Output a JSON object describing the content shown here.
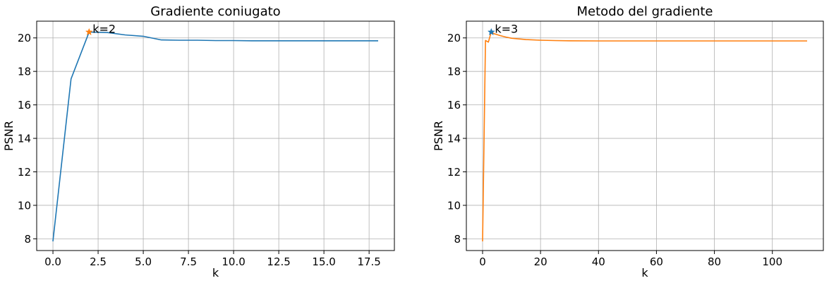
{
  "colors": {
    "series_blue": "#1f77b4",
    "series_orange": "#ff7f0e",
    "grid": "#b0b0b0",
    "axis": "#000000"
  },
  "chart_data": [
    {
      "type": "line",
      "title": "Gradiente coniugato",
      "xlabel": "k",
      "ylabel": "PSNR",
      "xlim": [
        -0.9,
        18.9
      ],
      "ylim": [
        7.3,
        21.0
      ],
      "xticks": [
        0.0,
        2.5,
        5.0,
        7.5,
        10.0,
        12.5,
        15.0,
        17.5
      ],
      "xtick_labels": [
        "0.0",
        "2.5",
        "5.0",
        "7.5",
        "10.0",
        "12.5",
        "15.0",
        "17.5"
      ],
      "yticks": [
        8,
        10,
        12,
        14,
        16,
        18,
        20
      ],
      "ytick_labels": [
        "8",
        "10",
        "12",
        "14",
        "16",
        "18",
        "20"
      ],
      "grid": true,
      "series": [
        {
          "color": "#1f77b4",
          "x": [
            0,
            1,
            2,
            3,
            4,
            5,
            6,
            7,
            8,
            9,
            10,
            11,
            12,
            13,
            14,
            15,
            16,
            17,
            18
          ],
          "y": [
            7.85,
            17.55,
            20.35,
            20.32,
            20.18,
            20.1,
            19.88,
            19.86,
            19.86,
            19.84,
            19.84,
            19.83,
            19.83,
            19.83,
            19.83,
            19.83,
            19.83,
            19.83,
            19.83
          ]
        }
      ],
      "marker": {
        "x": 2,
        "y": 20.35,
        "color": "#ff7f0e",
        "label": "k=2"
      }
    },
    {
      "type": "line",
      "title": "Metodo del gradiente",
      "xlabel": "k",
      "ylabel": "PSNR",
      "xlim": [
        -5.6,
        117.6
      ],
      "ylim": [
        7.3,
        21.0
      ],
      "xticks": [
        0,
        20,
        40,
        60,
        80,
        100
      ],
      "xtick_labels": [
        "0",
        "20",
        "40",
        "60",
        "80",
        "100"
      ],
      "yticks": [
        8,
        10,
        12,
        14,
        16,
        18,
        20
      ],
      "ytick_labels": [
        "8",
        "10",
        "12",
        "14",
        "16",
        "18",
        "20"
      ],
      "grid": true,
      "series": [
        {
          "color": "#ff7f0e",
          "x": [
            0,
            1,
            2,
            3,
            4,
            5,
            6,
            8,
            10,
            12,
            15,
            20,
            25,
            30,
            40,
            50,
            60,
            70,
            80,
            90,
            100,
            112
          ],
          "y": [
            7.85,
            19.85,
            19.75,
            20.35,
            20.25,
            20.2,
            20.14,
            20.05,
            19.98,
            19.95,
            19.9,
            19.86,
            19.84,
            19.83,
            19.82,
            19.82,
            19.82,
            19.82,
            19.82,
            19.82,
            19.82,
            19.82
          ]
        }
      ],
      "marker": {
        "x": 3,
        "y": 20.35,
        "color": "#1f77b4",
        "label": "k=3"
      }
    }
  ]
}
